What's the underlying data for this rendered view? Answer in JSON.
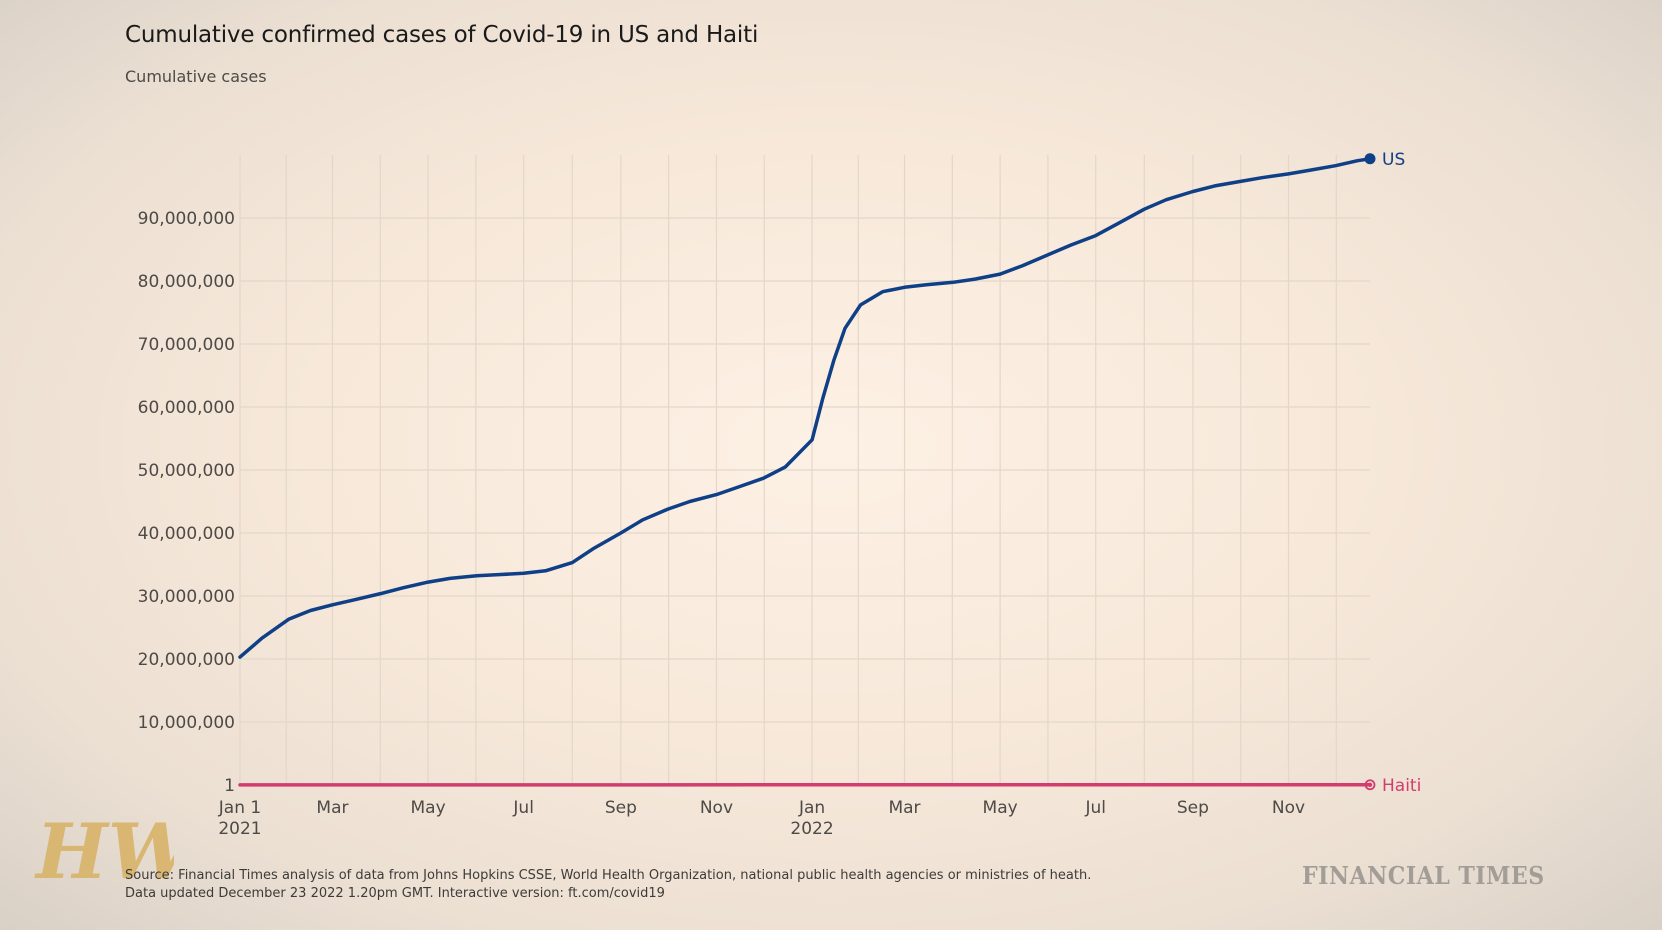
{
  "header": {
    "title": "Cumulative confirmed cases of Covid-19 in US and Haiti",
    "subtitle": "Cumulative cases"
  },
  "footer": {
    "source_line1": "Source: Financial Times analysis of data from Johns Hopkins CSSE, World Health Organization, national public health agencies or ministries of heath.",
    "source_line2": "Data updated December 23 2022 1.20pm GMT. Interactive version: ft.com/covid19",
    "publisher": "FINANCIAL TIMES",
    "watermark": "HW"
  },
  "colors": {
    "us": "#0f3f86",
    "haiti": "#d23c6e",
    "grid": "#e3d7ca",
    "axis_text": "#4d4a47"
  },
  "chart_data": {
    "type": "line",
    "title": "Cumulative confirmed cases of Covid-19 in US and Haiti",
    "subtitle": "Cumulative cases",
    "y_scale": "linear",
    "ylim": [
      1,
      100000000
    ],
    "xlim": [
      "2021-01-01",
      "2022-12-23"
    ],
    "y_ticks": [
      {
        "value": 1,
        "label": "1"
      },
      {
        "value": 10000000,
        "label": "10,000,000"
      },
      {
        "value": 20000000,
        "label": "20,000,000"
      },
      {
        "value": 30000000,
        "label": "30,000,000"
      },
      {
        "value": 40000000,
        "label": "40,000,000"
      },
      {
        "value": 50000000,
        "label": "50,000,000"
      },
      {
        "value": 60000000,
        "label": "60,000,000"
      },
      {
        "value": 70000000,
        "label": "70,000,000"
      },
      {
        "value": 80000000,
        "label": "80,000,000"
      },
      {
        "value": 90000000,
        "label": "90,000,000"
      }
    ],
    "x_ticks": [
      {
        "date": "2021-01-01",
        "label": "Jan 1",
        "sublabel": "2021"
      },
      {
        "date": "2021-03-01",
        "label": "Mar",
        "sublabel": ""
      },
      {
        "date": "2021-05-01",
        "label": "May",
        "sublabel": ""
      },
      {
        "date": "2021-07-01",
        "label": "Jul",
        "sublabel": ""
      },
      {
        "date": "2021-09-01",
        "label": "Sep",
        "sublabel": ""
      },
      {
        "date": "2021-11-01",
        "label": "Nov",
        "sublabel": ""
      },
      {
        "date": "2022-01-01",
        "label": "Jan",
        "sublabel": "2022"
      },
      {
        "date": "2022-03-01",
        "label": "Mar",
        "sublabel": ""
      },
      {
        "date": "2022-05-01",
        "label": "May",
        "sublabel": ""
      },
      {
        "date": "2022-07-01",
        "label": "Jul",
        "sublabel": ""
      },
      {
        "date": "2022-09-01",
        "label": "Sep",
        "sublabel": ""
      },
      {
        "date": "2022-11-01",
        "label": "Nov",
        "sublabel": ""
      }
    ],
    "grid": true,
    "series": [
      {
        "name": "US",
        "color": "#0f3f86",
        "points": [
          [
            "2021-01-01",
            20300000
          ],
          [
            "2021-01-15",
            23300000
          ],
          [
            "2021-02-01",
            26300000
          ],
          [
            "2021-02-15",
            27700000
          ],
          [
            "2021-03-01",
            28600000
          ],
          [
            "2021-03-15",
            29400000
          ],
          [
            "2021-04-01",
            30400000
          ],
          [
            "2021-04-15",
            31300000
          ],
          [
            "2021-05-01",
            32200000
          ],
          [
            "2021-05-15",
            32800000
          ],
          [
            "2021-06-01",
            33200000
          ],
          [
            "2021-06-15",
            33400000
          ],
          [
            "2021-07-01",
            33600000
          ],
          [
            "2021-07-15",
            34000000
          ],
          [
            "2021-08-01",
            35300000
          ],
          [
            "2021-08-15",
            37600000
          ],
          [
            "2021-09-01",
            40000000
          ],
          [
            "2021-09-15",
            42100000
          ],
          [
            "2021-10-01",
            43800000
          ],
          [
            "2021-10-15",
            45000000
          ],
          [
            "2021-11-01",
            46100000
          ],
          [
            "2021-11-15",
            47300000
          ],
          [
            "2021-12-01",
            48700000
          ],
          [
            "2021-12-15",
            50500000
          ],
          [
            "2022-01-01",
            54800000
          ],
          [
            "2022-01-08",
            61500000
          ],
          [
            "2022-01-15",
            67500000
          ],
          [
            "2022-01-22",
            72500000
          ],
          [
            "2022-02-01",
            76200000
          ],
          [
            "2022-02-15",
            78300000
          ],
          [
            "2022-03-01",
            79000000
          ],
          [
            "2022-03-15",
            79400000
          ],
          [
            "2022-04-01",
            79800000
          ],
          [
            "2022-04-15",
            80300000
          ],
          [
            "2022-05-01",
            81100000
          ],
          [
            "2022-05-15",
            82400000
          ],
          [
            "2022-06-01",
            84200000
          ],
          [
            "2022-06-15",
            85700000
          ],
          [
            "2022-07-01",
            87200000
          ],
          [
            "2022-07-15",
            89100000
          ],
          [
            "2022-08-01",
            91400000
          ],
          [
            "2022-08-15",
            92900000
          ],
          [
            "2022-09-01",
            94200000
          ],
          [
            "2022-09-15",
            95100000
          ],
          [
            "2022-10-01",
            95800000
          ],
          [
            "2022-10-15",
            96400000
          ],
          [
            "2022-11-01",
            97000000
          ],
          [
            "2022-11-15",
            97600000
          ],
          [
            "2022-12-01",
            98300000
          ],
          [
            "2022-12-15",
            99100000
          ],
          [
            "2022-12-23",
            99400000
          ]
        ]
      },
      {
        "name": "Haiti",
        "color": "#d23c6e",
        "points": [
          [
            "2021-01-01",
            10000
          ],
          [
            "2021-06-01",
            17000
          ],
          [
            "2021-12-01",
            25000
          ],
          [
            "2022-06-01",
            32000
          ],
          [
            "2022-12-23",
            34000
          ]
        ]
      }
    ]
  }
}
